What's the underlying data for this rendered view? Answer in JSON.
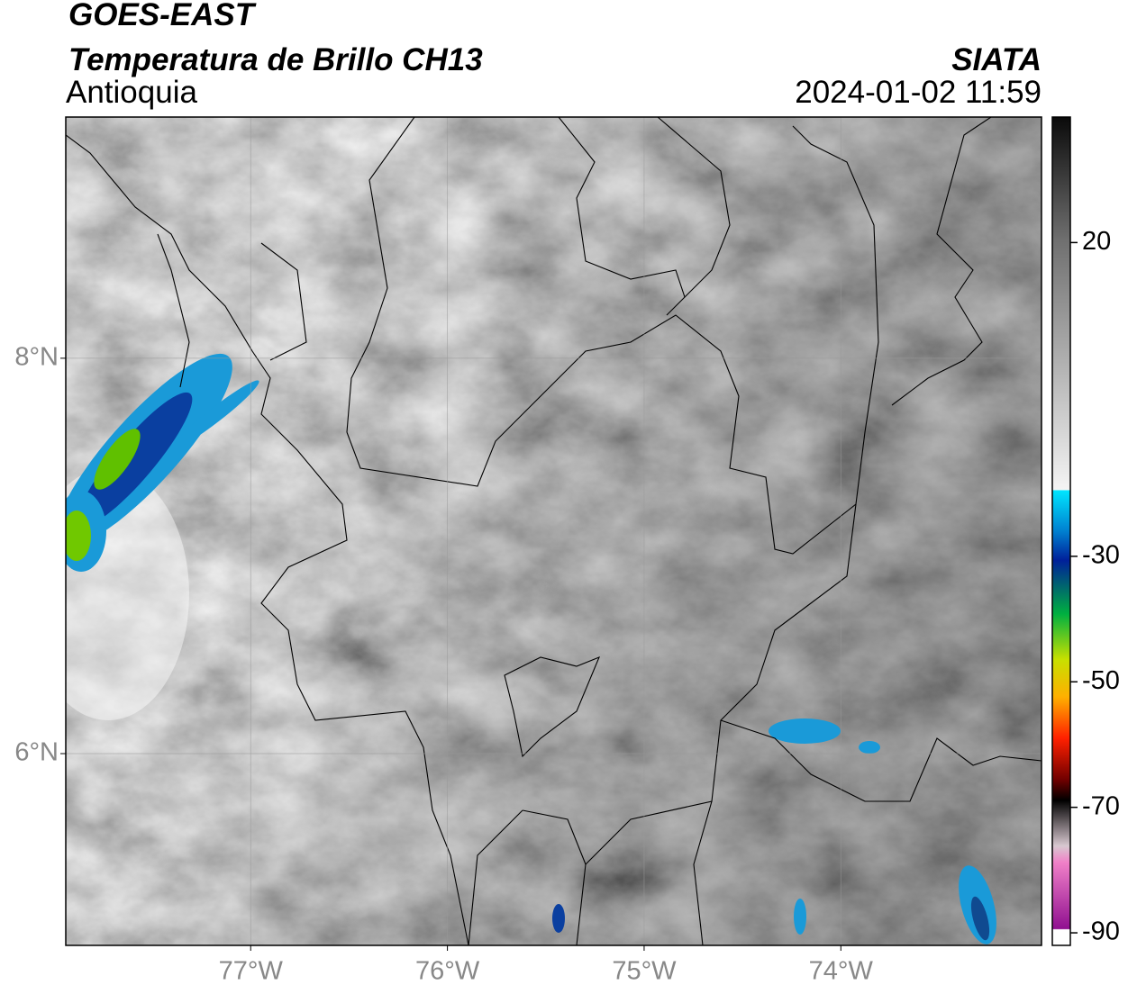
{
  "header": {
    "title": "GOES-EAST",
    "subtitle": "Temperatura de Brillo CH13",
    "region": "Antioquia",
    "source": "SIATA",
    "timestamp": "2024-01-02 11:59"
  },
  "map": {
    "xlim": [
      -77.94,
      -72.98
    ],
    "ylim": [
      5.03,
      9.22
    ],
    "xticks": [
      {
        "value": -77,
        "label": "77°W"
      },
      {
        "value": -76,
        "label": "76°W"
      },
      {
        "value": -75,
        "label": "75°W"
      },
      {
        "value": -74,
        "label": "74°W"
      }
    ],
    "yticks": [
      {
        "value": 8,
        "label": "8°N"
      },
      {
        "value": 6,
        "label": "6°N"
      }
    ],
    "grid": true
  },
  "colorbar": {
    "lim": [
      -92,
      40
    ],
    "ticks": [
      20,
      -30,
      -50,
      -70,
      -90
    ]
  }
}
